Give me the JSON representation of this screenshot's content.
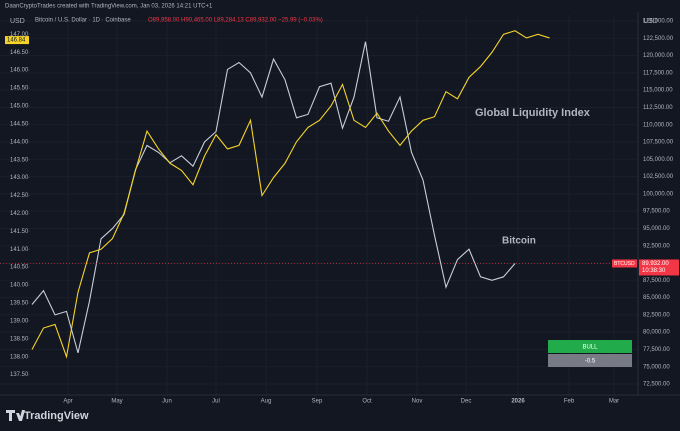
{
  "header": {
    "byline": "DaanCryptoTrades created with TradingView.com, Jan 03, 2026 14:21 UTC+1",
    "symbol_info": "Bitcoin / U.S. Dollar · 1D · Coinbase",
    "ohlc": "O89,958.00 H90,465.00 L89,284.13 C89,932.00 −25.99 (−0.03%)"
  },
  "chart_data": {
    "type": "line",
    "left_axis_label": "USD",
    "right_axis_label": "USD",
    "x_labels": [
      "Apr",
      "May",
      "Jun",
      "Jul",
      "Aug",
      "Sep",
      "Oct",
      "Nov",
      "Dec",
      "2026",
      "Feb",
      "Mar"
    ],
    "series": [
      {
        "name": "Bitcoin",
        "color": "#f7931a",
        "line_color": "#c9cdd6",
        "axis": "y2",
        "values": [
          84000,
          86000,
          82500,
          83000,
          77000,
          84500,
          93500,
          95000,
          97000,
          103500,
          107000,
          106000,
          104500,
          105500,
          104000,
          107500,
          109000,
          118000,
          119000,
          117500,
          114000,
          119500,
          116500,
          111000,
          111500,
          115500,
          116000,
          109500,
          114000,
          122000,
          111000,
          110500,
          114000,
          106000,
          102000,
          94000,
          86500,
          90500,
          92000,
          88000,
          87500,
          88000,
          89932,
          null,
          null,
          null
        ]
      },
      {
        "name": "Global Liquidity Index",
        "color": "#f5d328",
        "axis": "y",
        "values": [
          138.2,
          138.8,
          138.9,
          138.0,
          139.8,
          140.9,
          141.0,
          141.3,
          142.0,
          143.2,
          144.3,
          143.8,
          143.4,
          143.2,
          142.8,
          143.6,
          144.2,
          143.8,
          143.9,
          144.6,
          142.5,
          143.0,
          143.4,
          144.0,
          144.4,
          144.6,
          145.0,
          145.6,
          144.6,
          144.4,
          144.8,
          144.3,
          143.9,
          144.3,
          144.6,
          144.7,
          145.4,
          145.2,
          145.8,
          146.1,
          146.5,
          147.0,
          147.1,
          146.9,
          147.0,
          146.9
        ]
      }
    ],
    "ylim": [
      136.93,
      147.54
    ],
    "yticks": [
      {
        "value": 137.5,
        "label": "137.50"
      },
      {
        "value": 138,
        "label": "138.00"
      },
      {
        "value": 138.5,
        "label": "138.50"
      },
      {
        "value": 139,
        "label": "139.00"
      },
      {
        "value": 139.5,
        "label": "139.50"
      },
      {
        "value": 140,
        "label": "140.00"
      },
      {
        "value": 140.5,
        "label": "140.50"
      },
      {
        "value": 141,
        "label": "141.00"
      },
      {
        "value": 141.5,
        "label": "141.50"
      },
      {
        "value": 142,
        "label": "142.00"
      },
      {
        "value": 142.5,
        "label": "142.50"
      },
      {
        "value": 143,
        "label": "143.00"
      },
      {
        "value": 143.5,
        "label": "143.50"
      },
      {
        "value": 144,
        "label": "144.00"
      },
      {
        "value": 144.5,
        "label": "144.50"
      },
      {
        "value": 145,
        "label": "145.00"
      },
      {
        "value": 145.5,
        "label": "145.50"
      },
      {
        "value": 146,
        "label": "146.00"
      },
      {
        "value": 146.5,
        "label": "146.50"
      },
      {
        "value": 147,
        "label": "147.00"
      }
    ],
    "y2lim": [
      70910,
      125870
    ],
    "y2ticks": [
      {
        "value": 72500,
        "label": "72,500.00"
      },
      {
        "value": 75000,
        "label": "75,000.00"
      },
      {
        "value": 77500,
        "label": "77,500.00"
      },
      {
        "value": 80000,
        "label": "80,000.00"
      },
      {
        "value": 82500,
        "label": "82,500.00"
      },
      {
        "value": 85000,
        "label": "85,000.00"
      },
      {
        "value": 87500,
        "label": "87,500.00"
      },
      {
        "value": 90000,
        "label": "90,000.00"
      },
      {
        "value": 92500,
        "label": "92,500.00"
      },
      {
        "value": 95000,
        "label": "95,000.00"
      },
      {
        "value": 97500,
        "label": "97,500.00"
      },
      {
        "value": 100000,
        "label": "100,000.00"
      },
      {
        "value": 102500,
        "label": "102,500.00"
      },
      {
        "value": 105000,
        "label": "105,000.00"
      },
      {
        "value": 107500,
        "label": "107,500.00"
      },
      {
        "value": 110000,
        "label": "110,000.00"
      },
      {
        "value": 112500,
        "label": "112,500.00"
      },
      {
        "value": 115000,
        "label": "115,000.00"
      },
      {
        "value": 117500,
        "label": "117,500.00"
      },
      {
        "value": 120000,
        "label": "120,000.00"
      },
      {
        "value": 122500,
        "label": "122,500.00"
      },
      {
        "value": 125000,
        "label": "125,000.00"
      }
    ],
    "last_price": {
      "value": 89932,
      "label": "89,932.00",
      "symbol": "BTCUSD",
      "countdown": "10:38:30",
      "color": "#f23645"
    },
    "gli_last": {
      "value": 146.84,
      "label": "146.84"
    },
    "signal": {
      "state": "BULL",
      "state_color": "#22ab4a",
      "score": "-0.5"
    },
    "brand": "TradingView"
  }
}
